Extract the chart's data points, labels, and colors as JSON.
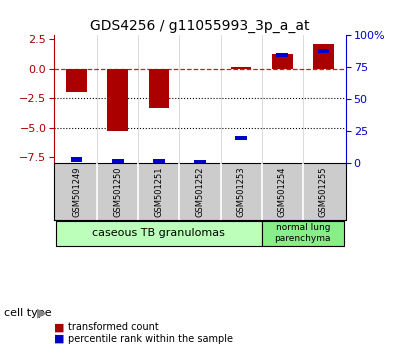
{
  "title": "GDS4256 / g11055993_3p_a_at",
  "samples": [
    "GSM501249",
    "GSM501250",
    "GSM501251",
    "GSM501252",
    "GSM501253",
    "GSM501254",
    "GSM501255"
  ],
  "transformed_count": [
    -2.0,
    -5.3,
    -3.3,
    -0.05,
    0.15,
    1.2,
    2.1
  ],
  "percentile_rank": [
    3,
    2,
    2,
    1,
    20,
    85,
    88
  ],
  "ylim_left": [
    -8.0,
    2.8
  ],
  "ylim_right": [
    0,
    100
  ],
  "yticks_left": [
    2.5,
    0.0,
    -2.5,
    -5.0,
    -7.5
  ],
  "yticks_right": [
    100,
    75,
    50,
    25,
    0
  ],
  "hlines": [
    -2.5,
    -5.0
  ],
  "dashed_hline": 0.0,
  "bar_color": "#aa0000",
  "dot_color": "#0000cc",
  "cell_type_groups": [
    {
      "label": "caseous TB granulomas",
      "start": 0,
      "end": 4,
      "color": "#bbffbb"
    },
    {
      "label": "normal lung\nparenchyma",
      "start": 5,
      "end": 6,
      "color": "#88ee88"
    }
  ],
  "cell_type_label": "cell type",
  "legend_red": "transformed count",
  "legend_blue": "percentile rank within the sample",
  "xlab_bg": "#cccccc",
  "xlab_divider": "#ffffff"
}
